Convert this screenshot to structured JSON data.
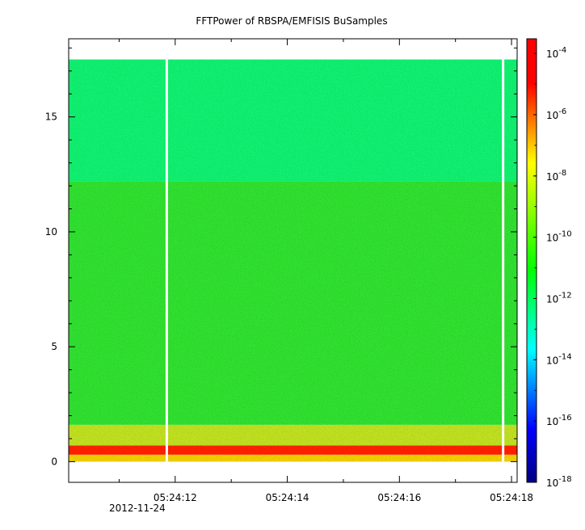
{
  "chart_data": {
    "type": "heatmap",
    "title": "FFTPower of RBSPA/EMFISIS  BuSamples",
    "xlabel": "",
    "ylabel": "",
    "date_label": "2012-11-24",
    "x_tick_labels": [
      "05:24:12",
      "05:24:14",
      "05:24:16",
      "05:24:18"
    ],
    "x_tick_values_seconds": [
      12,
      14,
      16,
      18
    ],
    "x_range_seconds": [
      10.1,
      18.1
    ],
    "y_ticks": [
      0,
      5,
      10,
      15
    ],
    "y_tick_labels": [
      "0",
      "5",
      "10",
      "15"
    ],
    "y_range": [
      -0.9,
      18.4
    ],
    "data_y_range": [
      0,
      17.5
    ],
    "colorbar": {
      "scale": "log",
      "range": [
        1e-18,
        0.0003
      ],
      "tick_values": [
        -4,
        -6,
        -8,
        -10,
        -12,
        -14,
        -16,
        -18
      ],
      "tick_base": "10",
      "tick_exponents": [
        "-4",
        "-6",
        "-8",
        "-10",
        "-12",
        "-14",
        "-16",
        "-18"
      ],
      "colors": [
        "#000080",
        "#0000ff",
        "#00ffff",
        "#00ff00",
        "#ffff00",
        "#ff0000",
        "#ff0000"
      ]
    },
    "data_gaps_seconds": [
      11.85,
      17.85
    ],
    "bands": [
      {
        "y_range": [
          12.2,
          17.5
        ],
        "log_power": -11.3,
        "color": "#10f070"
      },
      {
        "y_range": [
          1.6,
          12.2
        ],
        "log_power": -10.3,
        "color": "#30e030"
      },
      {
        "y_range": [
          0.7,
          1.6
        ],
        "log_power": -9.2,
        "color": "#c0e020"
      },
      {
        "y_range": [
          0.3,
          0.7
        ],
        "log_power": -6.2,
        "color": "#ff2000"
      },
      {
        "y_range": [
          0.0,
          0.3
        ],
        "log_power": -8.0,
        "color": "#f0d000"
      }
    ]
  }
}
